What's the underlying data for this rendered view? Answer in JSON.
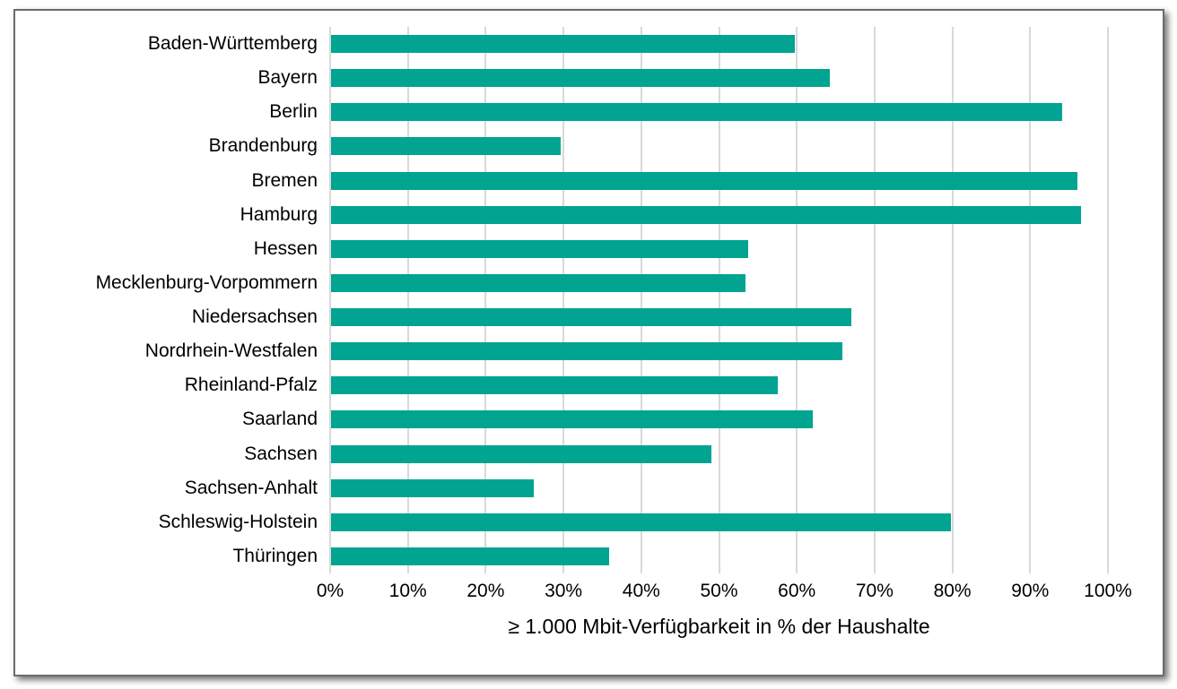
{
  "chart_data": {
    "type": "bar",
    "orientation": "horizontal",
    "categories": [
      "Baden-Württemberg",
      "Bayern",
      "Berlin",
      "Brandenburg",
      "Bremen",
      "Hamburg",
      "Hessen",
      "Mecklenburg-Vorpommern",
      "Niedersachsen",
      "Nordrhein-Westfalen",
      "Rheinland-Pfalz",
      "Saarland",
      "Sachsen",
      "Sachsen-Anhalt",
      "Schleswig-Holstein",
      "Thüringen"
    ],
    "values": [
      59.6,
      64.1,
      94.0,
      29.5,
      96.0,
      96.4,
      53.6,
      53.3,
      66.9,
      65.7,
      57.4,
      61.9,
      48.9,
      26.1,
      79.7,
      35.8
    ],
    "xlabel": "≥ 1.000 Mbit-Verfügbarkeit in % der Haushalte",
    "xlim": [
      0,
      100
    ],
    "tick_labels": [
      "0%",
      "10%",
      "20%",
      "30%",
      "40%",
      "50%",
      "60%",
      "70%",
      "80%",
      "90%",
      "100%"
    ],
    "tick_values": [
      0,
      10,
      20,
      30,
      40,
      50,
      60,
      70,
      80,
      90,
      100
    ],
    "grid": true,
    "legend_position": "none",
    "bar_color": "#00A491",
    "gridline_color": "#d9d9d9",
    "frame_border_color": "#6b6b6b"
  }
}
